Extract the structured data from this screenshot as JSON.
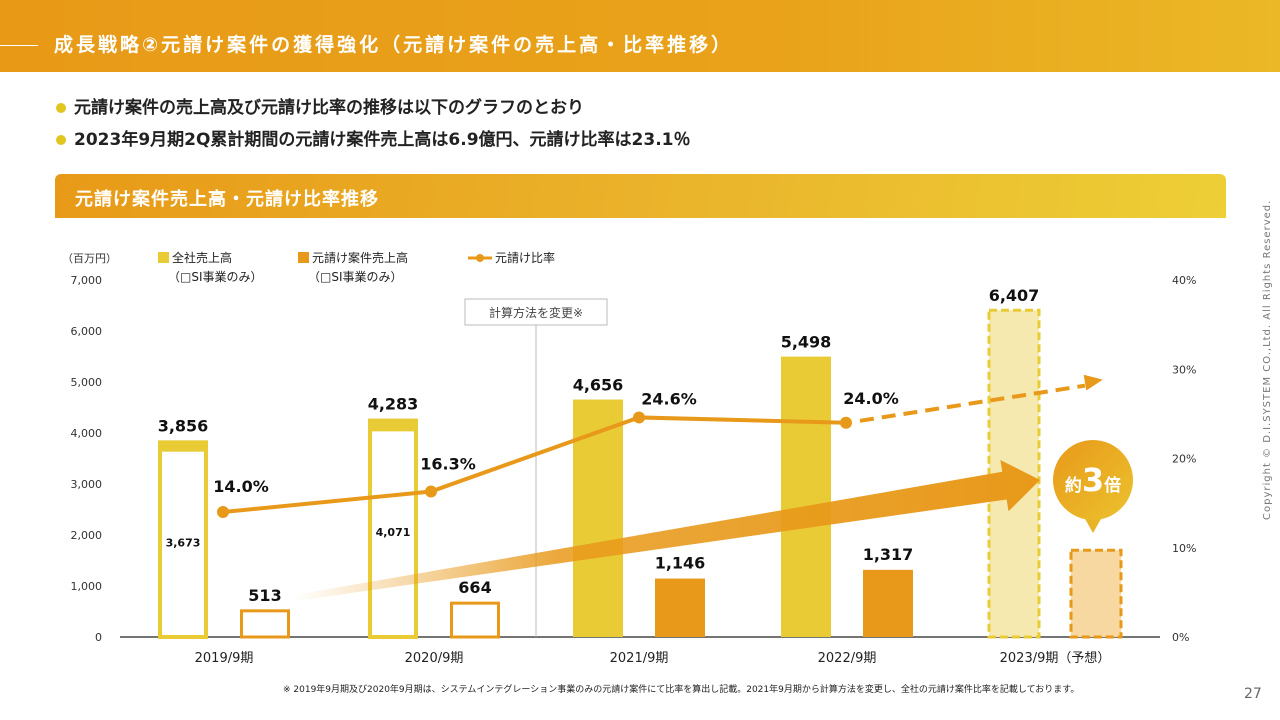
{
  "header": {
    "title": "成長戦略②元請け案件の獲得強化（元請け案件の売上高・比率推移）"
  },
  "bullets": [
    "元請け案件の売上高及び元請け比率の推移は以下のグラフのとおり",
    "2023年9月期2Q累計期間の元請け案件売上高は6.9億円、元請け比率は23.1％"
  ],
  "section": {
    "title": "元請け案件売上高・元請け比率推移"
  },
  "colors": {
    "total": "#e9cb35",
    "prime": "#e8991a",
    "rate_line": "#e8991a",
    "forecast_total": "#f6e9b0",
    "forecast_prime": "#f7d8a0"
  },
  "chart_data": {
    "type": "bar",
    "categories": [
      "2019/9期",
      "2020/9期",
      "2021/9期",
      "2022/9期",
      "2023/9期（予想）"
    ],
    "ylabel": "（百万円）",
    "ylim": [
      0,
      7000
    ],
    "yticks": [
      "0",
      "1,000",
      "2,000",
      "3,000",
      "4,000",
      "5,000",
      "6,000",
      "7,000"
    ],
    "y2lim": [
      0,
      40
    ],
    "y2ticks": [
      "0%",
      "10%",
      "20%",
      "30%",
      "40%"
    ],
    "legend": {
      "total": {
        "line1": "全社売上高",
        "line2": "（□SI事業のみ）"
      },
      "prime": {
        "line1": "元請け案件売上高",
        "line2": "（□SI事業のみ）"
      },
      "rate": {
        "line1": "元請け比率"
      }
    },
    "series": [
      {
        "name": "全社売上高",
        "values": [
          3856,
          4283,
          4656,
          5498,
          6407
        ],
        "labels": [
          "3,856",
          "4,283",
          "4,656",
          "5,498",
          "6,407"
        ]
      },
      {
        "name": "全社売上高（SI事業のみ）",
        "values": [
          3673,
          4071,
          null,
          null,
          null
        ],
        "labels": [
          "3,673",
          "4,071",
          "",
          "",
          ""
        ]
      },
      {
        "name": "元請け案件売上高",
        "values": [
          513,
          664,
          1146,
          1317,
          1700
        ],
        "labels": [
          "513",
          "664",
          "1,146",
          "1,317",
          ""
        ]
      },
      {
        "name": "元請け比率",
        "axis": "right",
        "values": [
          14.0,
          16.3,
          24.6,
          24.0,
          null
        ],
        "labels": [
          "14.0%",
          "16.3%",
          "24.6%",
          "24.0%",
          ""
        ],
        "forecast_trend_to": 28.5
      }
    ],
    "forecast_category_index": 4,
    "annotations": {
      "method_change": "計算方法を変更※",
      "growth_prefix": "約",
      "growth_value": "3",
      "growth_suffix": "倍"
    }
  },
  "footer": {
    "footnote": "※  2019年9月期及び2020年9月期は、システムインテグレーション事業のみの元請け案件にて比率を算出し記載。2021年9月期から計算方法を変更し、全社の元請け案件比率を記載しております。",
    "copyright": "Copyright © D.I.SYSTEM CO.,Ltd. All Rights Reserved.",
    "page": "27"
  }
}
